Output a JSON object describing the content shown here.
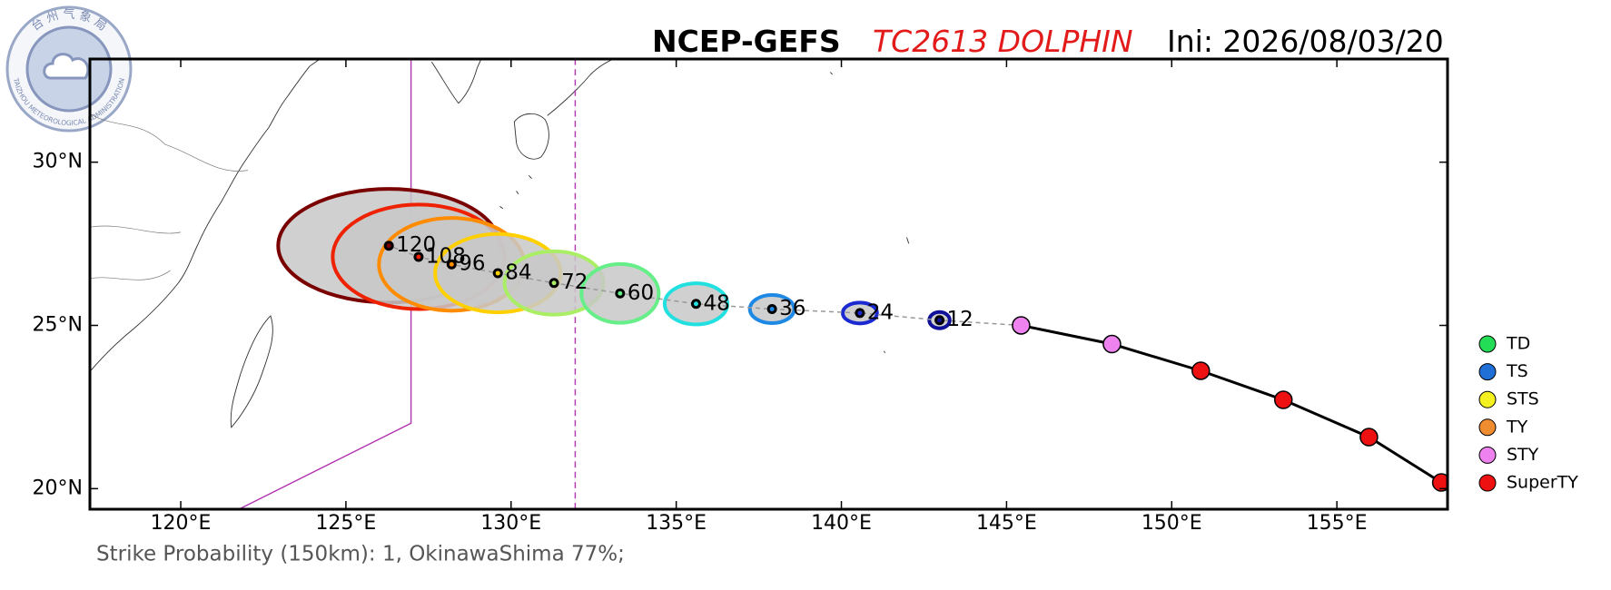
{
  "chart_data": {
    "type": "track",
    "title": {
      "model": "NCEP-GEFS",
      "storm": "TC2613 DOLPHIN",
      "init": "Ini: 2026/08/03/20"
    },
    "footer": "Strike Probability (150km): 1, OkinawaShima 77%;",
    "logo": {
      "cn": "台 州 气 象 局",
      "en": "TAIZHOU METEOROLOGICAL ADMINISTRATION"
    },
    "xlim": [
      117.25,
      158.35
    ],
    "ylim": [
      19.37,
      33.16
    ],
    "xticks": [
      {
        "value": 120,
        "label": "120°E"
      },
      {
        "value": 125,
        "label": "125°E"
      },
      {
        "value": 130,
        "label": "130°E"
      },
      {
        "value": 135,
        "label": "135°E"
      },
      {
        "value": 140,
        "label": "140°E"
      },
      {
        "value": 145,
        "label": "145°E"
      },
      {
        "value": 150,
        "label": "150°E"
      },
      {
        "value": 155,
        "label": "155°E"
      }
    ],
    "yticks": [
      {
        "value": 20,
        "label": "20°N"
      },
      {
        "value": 25,
        "label": "25°N"
      },
      {
        "value": 30,
        "label": "30°N"
      }
    ],
    "past": {
      "x": [
        158.16,
        155.97,
        153.38,
        150.88,
        148.19,
        145.44
      ],
      "y": [
        20.19,
        21.58,
        22.72,
        23.61,
        24.43,
        25.0
      ],
      "colors": [
        "#ee1111",
        "#ee1111",
        "#ee1111",
        "#ee1111",
        "#ee82ee",
        "#ee82ee"
      ]
    },
    "forecast": {
      "hours": [
        12,
        24,
        36,
        48,
        60,
        72,
        84,
        96,
        108,
        120
      ],
      "x": [
        142.97,
        140.56,
        137.9,
        135.6,
        133.3,
        131.3,
        129.6,
        128.2,
        127.2,
        126.3
      ],
      "y": [
        25.16,
        25.38,
        25.5,
        25.66,
        25.98,
        26.3,
        26.6,
        26.87,
        27.1,
        27.44
      ],
      "rx": [
        0.31,
        0.52,
        0.67,
        0.95,
        1.17,
        1.5,
        1.9,
        2.2,
        2.6,
        3.35
      ],
      "ry": [
        0.25,
        0.32,
        0.43,
        0.63,
        0.9,
        0.97,
        1.2,
        1.42,
        1.6,
        1.74
      ],
      "colors": [
        "#10109a",
        "#1a2ad0",
        "#1e88e5",
        "#22e0e0",
        "#66ee88",
        "#aaee66",
        "#ffd000",
        "#ff8c00",
        "#ee2200",
        "#7a0000"
      ]
    },
    "legend": {
      "names": [
        "TD",
        "TS",
        "STS",
        "TY",
        "STY",
        "SuperTY"
      ],
      "colors": [
        "#22dd55",
        "#1f6fd6",
        "#f5f020",
        "#f08c30",
        "#ee82ee",
        "#ee1111"
      ]
    }
  }
}
